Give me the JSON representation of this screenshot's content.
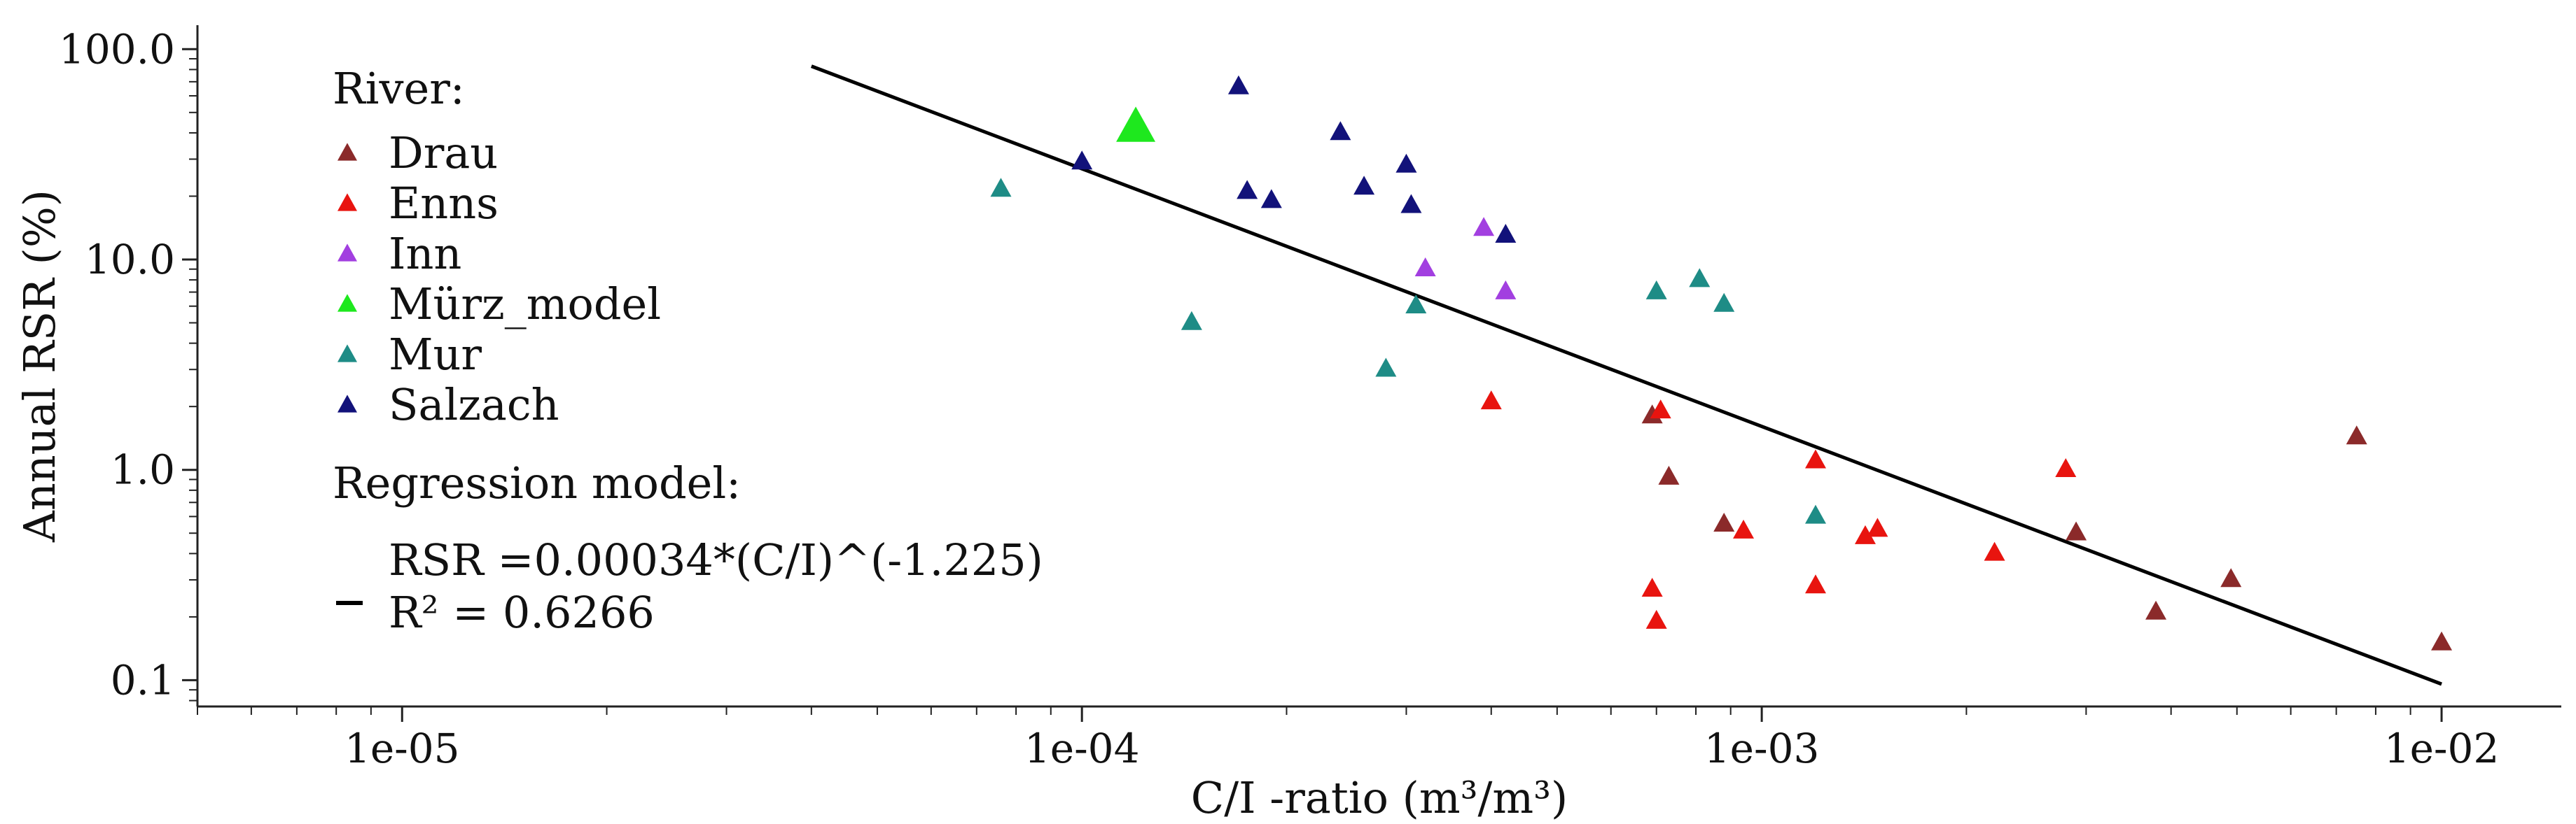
{
  "chart_data": {
    "type": "scatter",
    "x_scale": "log",
    "y_scale": "log",
    "xlabel": "C/I -ratio (m³/m³)",
    "ylabel": "Annual RSR (%)",
    "xlim": [
      5e-06,
      0.015
    ],
    "ylim": [
      0.075,
      130
    ],
    "x_ticks": [
      1e-05,
      0.0001,
      0.001,
      0.01
    ],
    "x_tick_labels": [
      "1e-05",
      "1e-04",
      "1e-03",
      "1e-02"
    ],
    "y_ticks": [
      0.1,
      1,
      10,
      100
    ],
    "y_tick_labels": [
      "0.1",
      "1.0",
      "10.0",
      "100.0"
    ],
    "grid": false,
    "legend_title": "River:",
    "legend_placement": "top-left",
    "series": [
      {
        "name": "Drau",
        "color": "#8b2a2a",
        "marker": "triangle",
        "points": [
          [
            0.00069,
            1.8
          ],
          [
            0.00073,
            0.92
          ],
          [
            0.00088,
            0.55
          ],
          [
            0.0029,
            0.5
          ],
          [
            0.0038,
            0.21
          ],
          [
            0.0049,
            0.3
          ],
          [
            0.0075,
            1.43
          ],
          [
            0.01,
            0.15
          ]
        ]
      },
      {
        "name": "Enns",
        "color": "#e8140f",
        "marker": "triangle",
        "points": [
          [
            0.0004,
            2.1
          ],
          [
            0.00071,
            1.9
          ],
          [
            0.00069,
            0.27
          ],
          [
            0.0007,
            0.19
          ],
          [
            0.00094,
            0.51
          ],
          [
            0.0012,
            1.1
          ],
          [
            0.0012,
            0.28
          ],
          [
            0.00142,
            0.48
          ],
          [
            0.00148,
            0.52
          ],
          [
            0.0022,
            0.4
          ],
          [
            0.0028,
            1.0
          ]
        ]
      },
      {
        "name": "Inn",
        "color": "#a23fe0",
        "marker": "triangle",
        "points": [
          [
            0.00032,
            9.0
          ],
          [
            0.00039,
            14.0
          ],
          [
            0.00042,
            7.0
          ]
        ]
      },
      {
        "name": "Mürz_model",
        "color": "#1ee81e",
        "marker": "triangle-large",
        "points": [
          [
            0.00012,
            42.0
          ]
        ]
      },
      {
        "name": "Mur",
        "color": "#1e8c86",
        "marker": "triangle",
        "points": [
          [
            7.6e-05,
            21.5
          ],
          [
            0.000145,
            5.0
          ],
          [
            0.00028,
            3.0
          ],
          [
            0.00031,
            6.0
          ],
          [
            0.0007,
            7.0
          ],
          [
            0.00081,
            8.0
          ],
          [
            0.00088,
            6.1
          ],
          [
            0.0012,
            0.6
          ]
        ]
      },
      {
        "name": "Salzach",
        "color": "#12127a",
        "marker": "triangle",
        "points": [
          [
            0.0001,
            29.0
          ],
          [
            0.00017,
            66.0
          ],
          [
            0.000175,
            21.0
          ],
          [
            0.00019,
            19.0
          ],
          [
            0.00024,
            40.0
          ],
          [
            0.00026,
            22.0
          ],
          [
            0.0003,
            28.0
          ],
          [
            0.000305,
            18.0
          ],
          [
            0.00042,
            13.0
          ]
        ]
      }
    ],
    "regression": {
      "title": "Regression model:",
      "equation": "RSR =0.00034*(C/I)^(-1.225)",
      "r2_label": "R² = 0.6266",
      "coefficient": 0.00034,
      "exponent": -1.225,
      "x_range": [
        4e-05,
        0.01
      ],
      "color": "#000000"
    }
  }
}
